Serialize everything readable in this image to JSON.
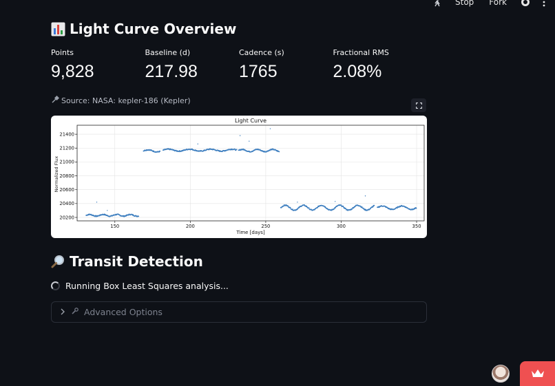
{
  "toolbar": {
    "stop_label": "Stop",
    "fork_label": "Fork"
  },
  "overview": {
    "title": "Light Curve Overview",
    "metrics": [
      {
        "label": "Points",
        "value": "9,828"
      },
      {
        "label": "Baseline (d)",
        "value": "217.98"
      },
      {
        "label": "Cadence (s)",
        "value": "1765"
      },
      {
        "label": "Fractional RMS",
        "value": "2.08%"
      }
    ],
    "source_caption": "Source: NASA: kepler-186 (Kepler)"
  },
  "chart_data": {
    "type": "scatter",
    "title": "Light Curve",
    "xlabel": "Time [days]",
    "ylabel": "Normalized Flux",
    "xlim": [
      125,
      355
    ],
    "ylim": [
      20150,
      21530
    ],
    "xticks": [
      "150",
      "200",
      "250",
      "300",
      "350"
    ],
    "yticks": [
      "20200",
      "20400",
      "20600",
      "20800",
      "21000",
      "21200",
      "21400"
    ],
    "grid": true,
    "color": "#3d7ebf",
    "segments": [
      {
        "x_start": 131,
        "x_end": 166,
        "base": 20230,
        "amp": 12,
        "period": 9
      },
      {
        "x_start": 169,
        "x_end": 180,
        "base": 21160,
        "amp": 15,
        "period": 12
      },
      {
        "x_start": 182,
        "x_end": 231,
        "base": 21170,
        "amp": 14,
        "period": 14
      },
      {
        "x_start": 232,
        "x_end": 259,
        "base": 21165,
        "amp": 16,
        "period": 10
      },
      {
        "x_start": 260,
        "x_end": 322,
        "base": 20340,
        "amp": 35,
        "period": 12
      },
      {
        "x_start": 324,
        "x_end": 350,
        "base": 20340,
        "amp": 25,
        "period": 13
      }
    ],
    "outliers": [
      {
        "x": 138,
        "y": 20420
      },
      {
        "x": 145,
        "y": 20300
      },
      {
        "x": 205,
        "y": 21260
      },
      {
        "x": 233,
        "y": 21380
      },
      {
        "x": 239,
        "y": 21300
      },
      {
        "x": 253,
        "y": 21480
      },
      {
        "x": 271,
        "y": 20420
      },
      {
        "x": 296,
        "y": 20430
      },
      {
        "x": 316,
        "y": 20510
      }
    ]
  },
  "transit": {
    "title": "Transit Detection",
    "status": "Running Box Least Squares analysis...",
    "expander_label": "Advanced Options"
  },
  "colors": {
    "background": "#0e1117",
    "badge": "#ef5051",
    "series": "#3d7ebf"
  }
}
